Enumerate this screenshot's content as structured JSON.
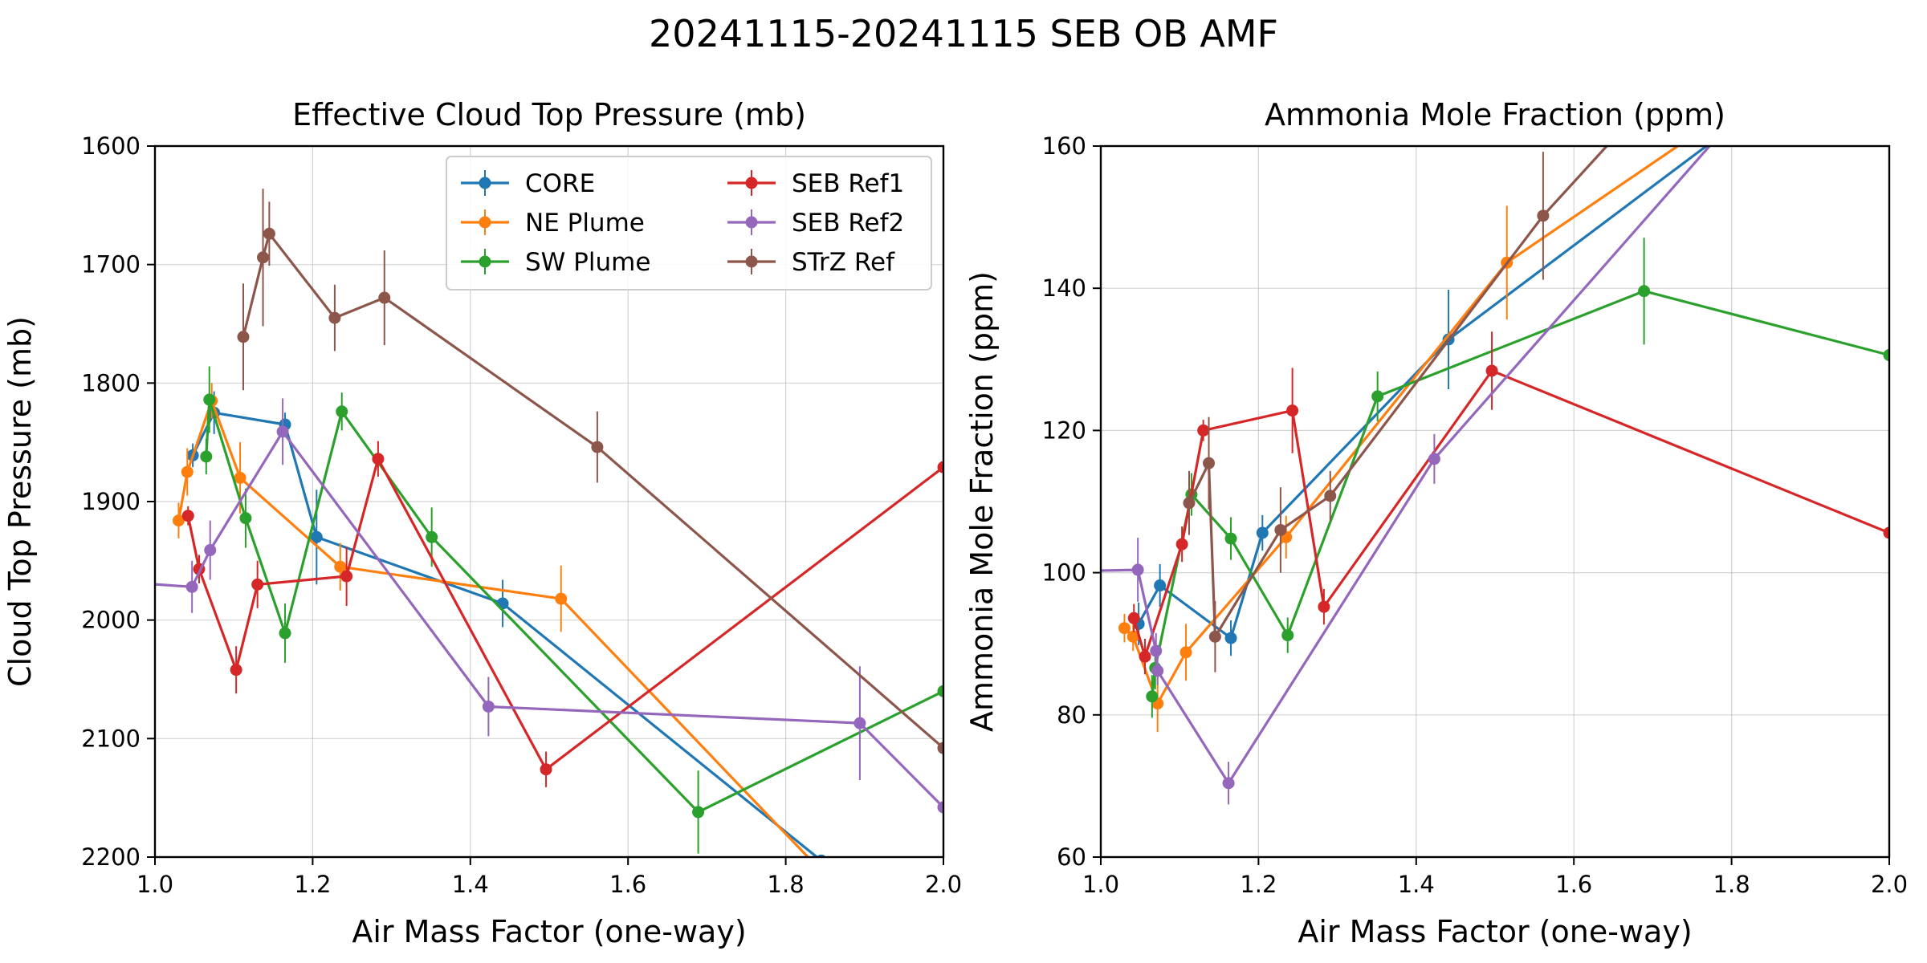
{
  "figure": {
    "title": "20241115-20241115 SEB OB AMF"
  },
  "chart_data": [
    {
      "type": "line",
      "title": "Effective Cloud Top Pressure (mb)",
      "xlabel": "Air Mass Factor (one-way)",
      "ylabel": "Cloud Top Pressure (mb)",
      "xlim": [
        1.0,
        2.0
      ],
      "ylim": [
        1600,
        2200
      ],
      "y_inverted": true,
      "xticks": [
        "1.0",
        "1.2",
        "1.4",
        "1.6",
        "1.8",
        "2.0"
      ],
      "yticks": [
        "1600",
        "1700",
        "1800",
        "1900",
        "2000",
        "2100",
        "2200"
      ],
      "grid": true,
      "legend": {
        "placement": "upper-right",
        "columns": 2
      },
      "series": [
        {
          "name": "CORE",
          "color": "#1f77b4",
          "x": [
            1.048,
            1.075,
            1.165,
            1.205,
            1.441,
            1.845
          ],
          "y": [
            1861,
            1825,
            1835,
            1930,
            1986,
            2203
          ],
          "err": [
            10,
            18,
            10,
            40,
            20,
            0
          ]
        },
        {
          "name": "NE Plume",
          "color": "#ff7f0e",
          "x": [
            1.03,
            1.041,
            1.072,
            1.108,
            1.235,
            1.515,
            1.9
          ],
          "y": [
            1916,
            1875,
            1815,
            1880,
            1955,
            1982,
            2250
          ],
          "err": [
            15,
            20,
            15,
            30,
            20,
            28,
            0
          ]
        },
        {
          "name": "SW Plume",
          "color": "#2ca02c",
          "x": [
            1.065,
            1.069,
            1.115,
            1.165,
            1.237,
            1.351,
            1.689,
            2.0
          ],
          "y": [
            1862,
            1814,
            1914,
            2011,
            1824,
            1930,
            2162,
            2060
          ],
          "err": [
            15,
            28,
            25,
            25,
            16,
            25,
            35,
            0
          ]
        },
        {
          "name": "SEB Ref1",
          "color": "#d62728",
          "x": [
            1.042,
            1.056,
            1.103,
            1.13,
            1.243,
            1.283,
            1.496,
            2.0
          ],
          "y": [
            1912,
            1957,
            2042,
            1970,
            1963,
            1864,
            2126,
            1871
          ],
          "err": [
            8,
            12,
            20,
            20,
            25,
            15,
            15,
            0
          ]
        },
        {
          "name": "SEB Ref2",
          "color": "#9467bd",
          "x": [
            0.96,
            1.047,
            1.07,
            1.162,
            1.423,
            1.894,
            2.0
          ],
          "y": [
            1968,
            1972,
            1941,
            1841,
            2073,
            2087,
            2158
          ],
          "err": [
            0,
            22,
            25,
            28,
            25,
            48,
            0
          ]
        },
        {
          "name": "STrZ Ref",
          "color": "#8c564b",
          "x": [
            1.112,
            1.137,
            1.145,
            1.228,
            1.291,
            1.561,
            2.0
          ],
          "y": [
            1761,
            1694,
            1674,
            1745,
            1728,
            1854,
            2108
          ],
          "err": [
            45,
            58,
            27,
            28,
            40,
            30,
            0
          ]
        }
      ]
    },
    {
      "type": "line",
      "title": "Ammonia Mole Fraction (ppm)",
      "xlabel": "Air Mass Factor (one-way)",
      "ylabel": "Ammonia Mole Fraction (ppm)",
      "xlim": [
        1.0,
        2.0
      ],
      "ylim": [
        60,
        160
      ],
      "xticks": [
        "1.0",
        "1.2",
        "1.4",
        "1.6",
        "1.8",
        "2.0"
      ],
      "yticks": [
        "60",
        "80",
        "100",
        "120",
        "140",
        "160"
      ],
      "grid": true,
      "series": [
        {
          "name": "CORE",
          "color": "#1f77b4",
          "x": [
            1.048,
            1.075,
            1.165,
            1.205,
            1.441,
            1.78
          ],
          "y": [
            92.8,
            98.2,
            90.8,
            105.6,
            132.8,
            161.0
          ],
          "err": [
            3,
            3,
            2.5,
            2.5,
            7,
            0
          ]
        },
        {
          "name": "NE Plume",
          "color": "#ff7f0e",
          "x": [
            1.03,
            1.041,
            1.072,
            1.108,
            1.235,
            1.515,
            1.745
          ],
          "y": [
            92.2,
            91.0,
            81.6,
            88.8,
            105.0,
            143.6,
            161.0
          ],
          "err": [
            2,
            2,
            4,
            4,
            3,
            8,
            0
          ]
        },
        {
          "name": "SW Plume",
          "color": "#2ca02c",
          "x": [
            1.065,
            1.069,
            1.115,
            1.165,
            1.237,
            1.351,
            1.689,
            2.0
          ],
          "y": [
            82.6,
            86.6,
            111.0,
            104.8,
            91.2,
            124.8,
            139.6,
            130.6
          ],
          "err": [
            3,
            3,
            3,
            3,
            2.5,
            3.5,
            7.5,
            0
          ]
        },
        {
          "name": "SEB Ref1",
          "color": "#d62728",
          "x": [
            1.042,
            1.056,
            1.103,
            1.13,
            1.243,
            1.283,
            1.496,
            2.0
          ],
          "y": [
            93.6,
            88.2,
            104.0,
            120.0,
            122.8,
            95.2,
            128.4,
            105.6
          ],
          "err": [
            2,
            2.5,
            2.5,
            1.5,
            6,
            2.5,
            5.5,
            0
          ]
        },
        {
          "name": "SEB Ref2",
          "color": "#9467bd",
          "x": [
            0.96,
            1.047,
            1.07,
            1.072,
            1.162,
            1.423,
            1.78
          ],
          "y": [
            100.2,
            100.4,
            89.0,
            86.2,
            70.4,
            116.0,
            161.0
          ],
          "err": [
            0,
            4.5,
            2.5,
            2,
            3,
            3.5,
            0
          ]
        },
        {
          "name": "STrZ Ref",
          "color": "#8c564b",
          "x": [
            1.112,
            1.137,
            1.145,
            1.228,
            1.291,
            1.561,
            1.65
          ],
          "y": [
            109.8,
            115.4,
            91.0,
            106.0,
            110.8,
            150.2,
            161.0
          ],
          "err": [
            4.5,
            6.5,
            5,
            6,
            3.5,
            9,
            0
          ]
        }
      ]
    }
  ]
}
